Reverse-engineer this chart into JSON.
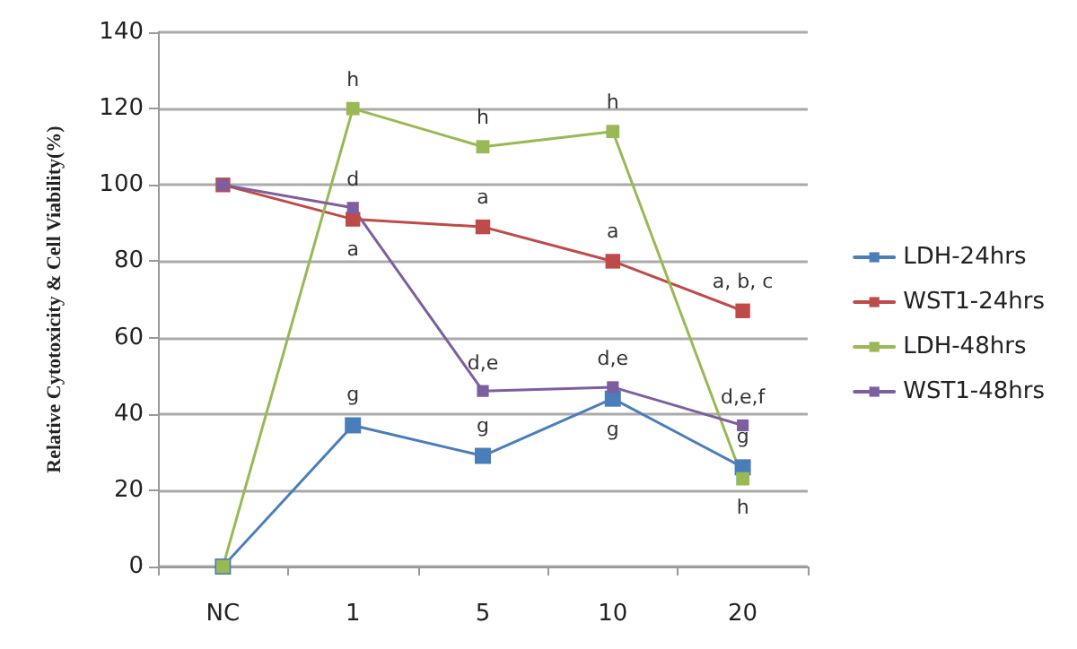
{
  "chart_data": {
    "type": "line",
    "ylabel": "Relative Cytotoxicity & Cell Viability(%)",
    "categories": [
      "NC",
      "1",
      "5",
      "10",
      "20"
    ],
    "ylim": [
      0,
      140
    ],
    "yticks": [
      0,
      20,
      40,
      60,
      80,
      100,
      120,
      140
    ],
    "grid": "y",
    "legend": "right",
    "marker": "square",
    "line_style": "solid",
    "series": [
      {
        "name": "LDH-24hrs",
        "color": "#4a7ebb",
        "values": [
          0,
          37,
          29,
          44,
          26
        ],
        "value_labels": [
          null,
          "g",
          "g",
          "g",
          "g"
        ]
      },
      {
        "name": "WST1-24hrs",
        "color": "#be4b48",
        "values": [
          100,
          91,
          89,
          80,
          67
        ],
        "value_labels": [
          null,
          "a",
          "a",
          "a",
          "a, b, c"
        ]
      },
      {
        "name": "LDH-48hrs",
        "color": "#98b954",
        "values": [
          0,
          120,
          110,
          114,
          23
        ],
        "value_labels": [
          null,
          "h",
          "h",
          "h",
          "h"
        ]
      },
      {
        "name": "WST1-48hrs",
        "color": "#7d5fa0",
        "values": [
          100,
          94,
          46,
          47,
          37
        ],
        "value_labels": [
          null,
          "d",
          "d,e",
          "d,e",
          "d,e,f"
        ]
      }
    ]
  }
}
